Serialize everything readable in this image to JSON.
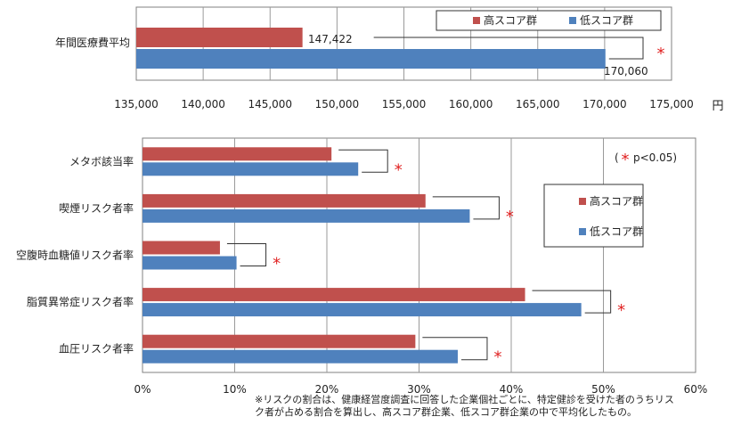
{
  "chart_data": [
    {
      "type": "bar",
      "orientation": "horizontal",
      "categories": [
        "年間医療費平均"
      ],
      "series": [
        {
          "name": "高スコア群",
          "color": "#c0504d",
          "values": [
            147422
          ]
        },
        {
          "name": "低スコア群",
          "color": "#4f81bd",
          "values": [
            170060
          ]
        }
      ],
      "data_labels": [
        "147,422",
        "170,060"
      ],
      "xlim": [
        135000,
        175000
      ],
      "x_ticks": [
        "135,000",
        "140,000",
        "145,000",
        "150,000",
        "155,000",
        "160,000",
        "165,000",
        "170,000",
        "175,000"
      ],
      "x_unit": "円",
      "significance": [
        "*"
      ],
      "grid": true,
      "legend_position": "top-right"
    },
    {
      "type": "bar",
      "orientation": "horizontal",
      "categories": [
        "メタボ該当率",
        "喫煙リスク者率",
        "空腹時血糖値リスク者率",
        "脂質異常症リスク者率",
        "血圧リスク者率"
      ],
      "series": [
        {
          "name": "高スコア群",
          "color": "#c0504d",
          "values": [
            20.5,
            30.7,
            8.4,
            41.5,
            29.6
          ]
        },
        {
          "name": "低スコア群",
          "color": "#4f81bd",
          "values": [
            23.4,
            35.5,
            10.2,
            47.6,
            34.2
          ]
        }
      ],
      "xlim": [
        0,
        60
      ],
      "x_ticks": [
        "0%",
        "10%",
        "20%",
        "30%",
        "40%",
        "50%",
        "60%"
      ],
      "significance": [
        "*",
        "*",
        "*",
        "*",
        "*"
      ],
      "significance_note": "p<0.05",
      "grid": true,
      "legend_position": "right"
    }
  ],
  "footnote": {
    "line1": "※リスクの割合は、健康経営度調査に回答した企業個社ごとに、特定健診を受けた者のうちリス",
    "line2": "ク者が占める割合を算出し、高スコア群企業、低スコア群企業の中で平均化したもの。"
  }
}
